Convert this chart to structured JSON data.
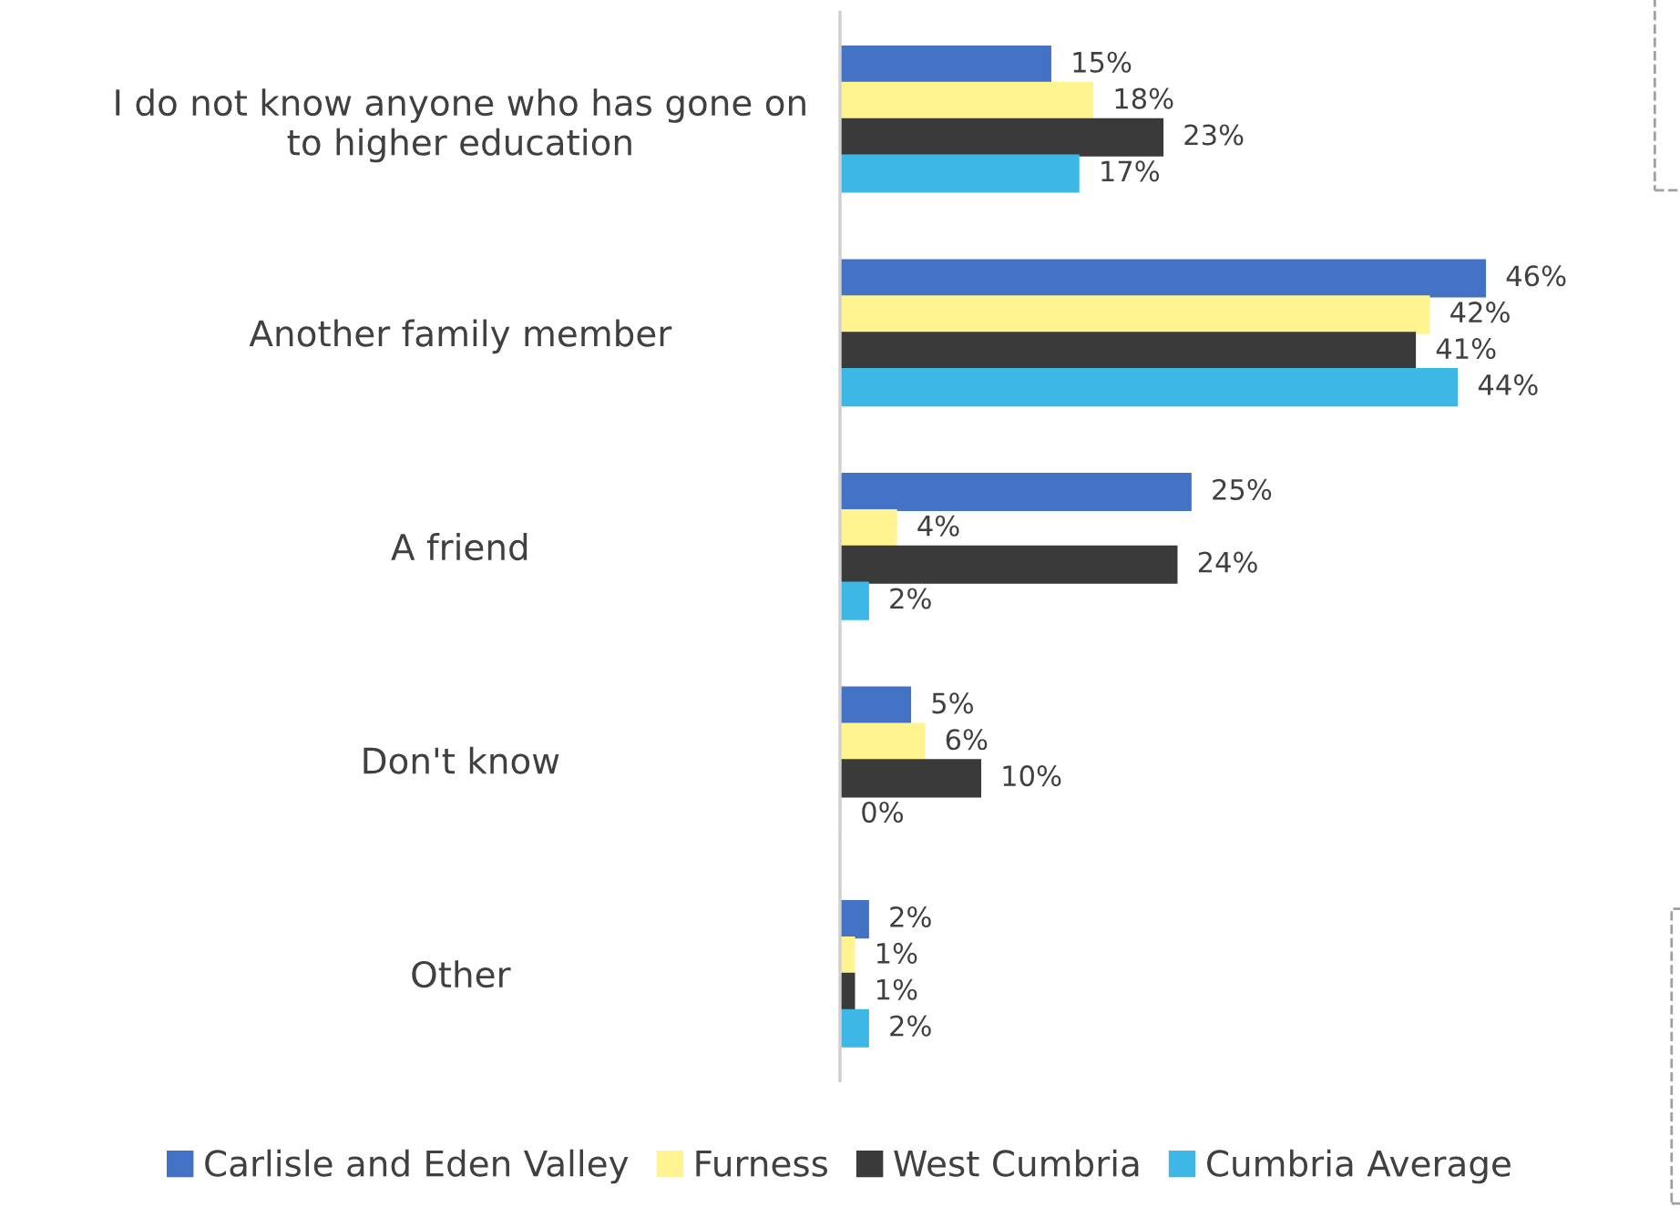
{
  "chart_data": {
    "type": "bar",
    "orientation": "horizontal",
    "categories": [
      "I do not know anyone who has gone on\nto higher education",
      "Another family member",
      "A friend",
      "Don't know",
      "Other"
    ],
    "series": [
      {
        "name": "Carlisle and Eden Valley",
        "color": "#4472c4",
        "values": [
          15,
          46,
          25,
          5,
          2
        ],
        "value_labels": [
          "15%",
          "46%",
          "25%",
          "5%",
          "2%"
        ]
      },
      {
        "name": "Furness",
        "color": "#fff48f",
        "values": [
          18,
          42,
          4,
          6,
          1
        ],
        "value_labels": [
          "18%",
          "42%",
          "4%",
          "6%",
          "1%"
        ]
      },
      {
        "name": "West Cumbria",
        "color": "#3a3a3a",
        "values": [
          23,
          41,
          24,
          10,
          1
        ],
        "value_labels": [
          "23%",
          "41%",
          "24%",
          "10%",
          "1%"
        ]
      },
      {
        "name": "Cumbria Average",
        "color": "#3db8e6",
        "values": [
          17,
          44,
          2,
          0,
          2
        ],
        "value_labels": [
          "17%",
          "44%",
          "2%",
          "0%",
          "2%"
        ]
      }
    ],
    "legend": "bottom",
    "grid": false,
    "tick_labels": "y"
  }
}
